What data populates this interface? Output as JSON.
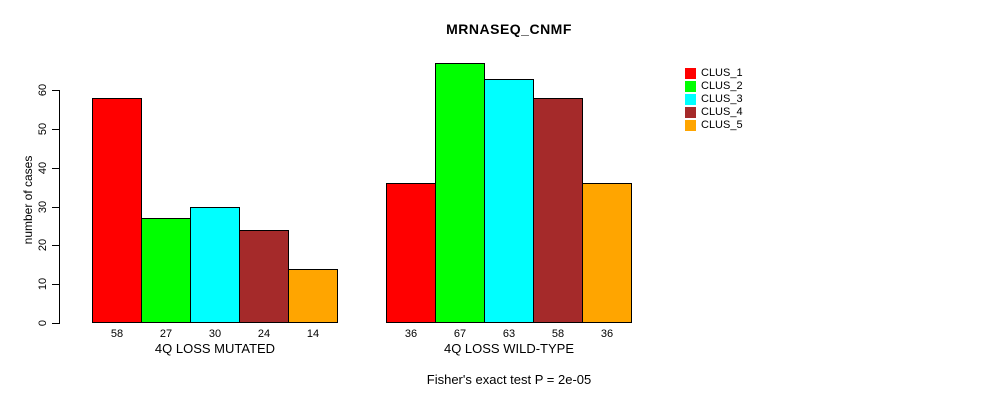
{
  "title": "MRNASEQ_CNMF",
  "caption": "Fisher's exact test P = 2e-05",
  "y_axis": {
    "label": "number of cases",
    "ticks": [
      0,
      10,
      20,
      30,
      40,
      50,
      60
    ]
  },
  "chart_data": {
    "type": "bar",
    "title": "MRNASEQ_CNMF",
    "xlabel": "",
    "ylabel": "number of cases",
    "ylim": [
      0,
      67
    ],
    "grid": false,
    "legend_position": "top-right",
    "categories": [
      "4Q LOSS MUTATED",
      "4Q LOSS WILD-TYPE"
    ],
    "series": [
      {
        "name": "CLUS_1",
        "color": "#FF0000",
        "values": [
          58,
          36
        ]
      },
      {
        "name": "CLUS_2",
        "color": "#00FF00",
        "values": [
          27,
          67
        ]
      },
      {
        "name": "CLUS_3",
        "color": "#00FFFF",
        "values": [
          30,
          63
        ]
      },
      {
        "name": "CLUS_4",
        "color": "#A52A2A",
        "values": [
          24,
          58
        ]
      },
      {
        "name": "CLUS_5",
        "color": "#FFA500",
        "values": [
          14,
          36
        ]
      }
    ],
    "bar_value_labels": true,
    "bar_border_color": "#000000",
    "annotation": "Fisher's exact test P = 2e-05"
  }
}
